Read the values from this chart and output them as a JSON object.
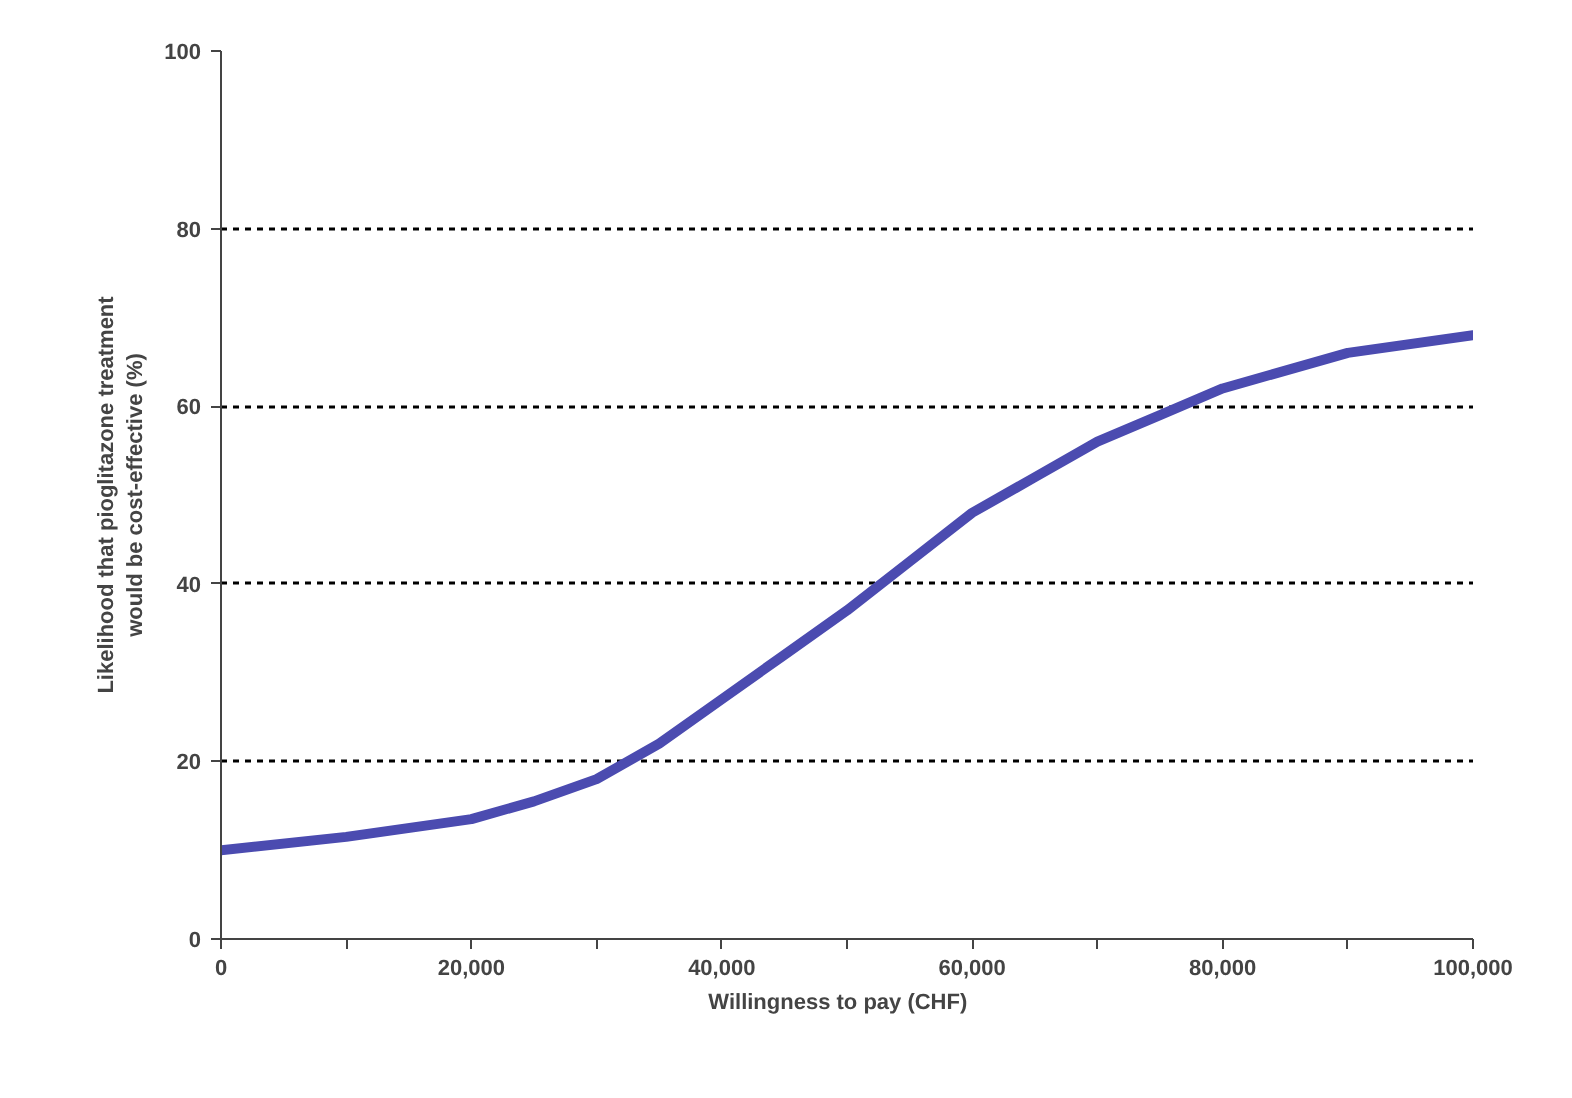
{
  "chart_data": {
    "type": "line",
    "xlabel": "Willingness to pay    (CHF)",
    "ylabel": "Likelihood that pioglitazone treatment\nwould be cost-effective (%)",
    "x": [
      0,
      10000,
      20000,
      25000,
      30000,
      35000,
      40000,
      45000,
      50000,
      55000,
      60000,
      65000,
      70000,
      75000,
      80000,
      90000,
      100000
    ],
    "series": [
      {
        "color": "#4b4bb0",
        "values": [
          10,
          11.5,
          13.5,
          15.5,
          18,
          22,
          27,
          32,
          37,
          42.5,
          48,
          52,
          56,
          59,
          62,
          66,
          68
        ]
      }
    ],
    "xlim": [
      0,
      100000
    ],
    "ylim": [
      0,
      100
    ],
    "xticks": [
      0,
      {
        "value": 10000,
        "label": null
      },
      {
        "value": 20000,
        "label": "20,000"
      },
      {
        "value": 30000,
        "label": null
      },
      {
        "value": 40000,
        "label": "40,000"
      },
      {
        "value": 50000,
        "label": null
      },
      {
        "value": 60000,
        "label": "60,000"
      },
      {
        "value": 70000,
        "label": null
      },
      {
        "value": 80000,
        "label": "80,000"
      },
      {
        "value": 90000,
        "label": null
      },
      {
        "value": 100000,
        "label": "100,000"
      }
    ],
    "yticks": [
      0,
      20,
      40,
      60,
      80,
      100
    ],
    "grid": "y",
    "line_style": "solid",
    "marker": "none"
  }
}
